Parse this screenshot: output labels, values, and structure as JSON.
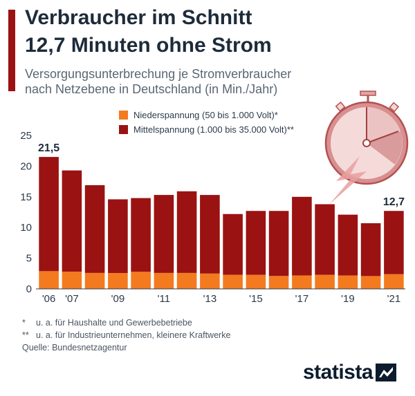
{
  "header": {
    "title_line1": "Verbraucher im Schnitt",
    "title_line2": "12,7 Minuten ohne Strom",
    "subtitle_line1": "Versorgungsunterbrechung je Stromverbraucher",
    "subtitle_line2": "nach Netzebene in Deutschland (in Min./Jahr)"
  },
  "colors": {
    "accent": "#9b1212",
    "low_voltage": "#f47a20",
    "medium_voltage": "#9b1212"
  },
  "chart_data": {
    "type": "bar",
    "stacked": true,
    "title": "Verbraucher im Schnitt 12,7 Minuten ohne Strom",
    "subtitle": "Versorgungsunterbrechung je Stromverbraucher nach Netzebene in Deutschland (in Min./Jahr)",
    "xlabel": "",
    "ylabel": "",
    "ylim": [
      0,
      25
    ],
    "yticks": [
      0,
      5,
      10,
      15,
      20,
      25
    ],
    "categories": [
      "2006",
      "2007",
      "2008",
      "2009",
      "2010",
      "2011",
      "2012",
      "2013",
      "2014",
      "2015",
      "2016",
      "2017",
      "2018",
      "2019",
      "2020",
      "2021"
    ],
    "xtick_labels": [
      "'06",
      "'07",
      "",
      "'09",
      "",
      "'11",
      "",
      "'13",
      "",
      "'15",
      "",
      "'17",
      "",
      "'19",
      "",
      "'21"
    ],
    "series": [
      {
        "name": "Niederspannung (50 bis 1.000 Volt)*",
        "color": "#f47a20",
        "values": [
          2.9,
          2.8,
          2.6,
          2.6,
          2.8,
          2.6,
          2.6,
          2.5,
          2.3,
          2.3,
          2.1,
          2.2,
          2.3,
          2.2,
          2.1,
          2.4
        ]
      },
      {
        "name": "Mittelspannung (1.000 bis 35.000 Volt)**",
        "color": "#9b1212",
        "values": [
          18.6,
          16.5,
          14.3,
          12.0,
          12.0,
          12.7,
          13.3,
          12.8,
          9.9,
          10.4,
          10.6,
          12.8,
          11.5,
          9.9,
          8.6,
          10.3
        ]
      }
    ],
    "totals": [
      21.5,
      19.3,
      16.9,
      14.6,
      14.8,
      15.3,
      15.9,
      15.3,
      12.2,
      12.7,
      12.7,
      15.0,
      13.8,
      12.1,
      10.7,
      12.7
    ],
    "data_labels": [
      {
        "index": 0,
        "text": "21,5"
      },
      {
        "index": 15,
        "text": "12,7"
      }
    ],
    "legend_position": "top-center",
    "grid": false
  },
  "notes": [
    {
      "mark": "*",
      "text": "u. a. für Haushalte und Gewerbebetriebe"
    },
    {
      "mark": "**",
      "text": "u. a. für Industrieunternehmen, kleinere Kraftwerke"
    }
  ],
  "source": "Quelle: Bundesnetzagentur",
  "brand": "statista",
  "icons": {
    "illustration": "stopwatch-icon",
    "logo": "statista-logo-icon"
  }
}
